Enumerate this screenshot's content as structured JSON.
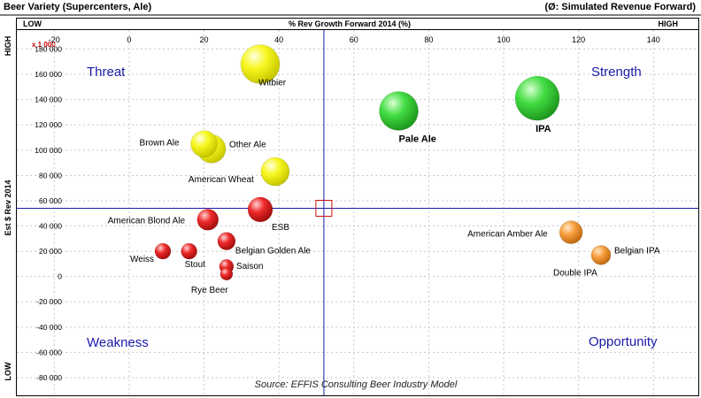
{
  "header": {
    "title": "Beer Variety  (Supercenters, Ale)",
    "subtitle": "(Ø: Simulated Revenue Forward)"
  },
  "top_axis": {
    "low": "LOW",
    "high": "HIGH",
    "label": "% Rev Growth Forward 2014 (%)"
  },
  "side_axis": {
    "high": "HIGH",
    "low": "LOW",
    "label": "Est $ Rev 2014",
    "multiplier": "x 1 000"
  },
  "quadrants": {
    "top_left": "Threat",
    "top_right": "Strength",
    "bottom_left": "Weakness",
    "bottom_right": "Opportunity"
  },
  "source": "Source:  EFFIS  Consulting Beer Industry Model",
  "colors": {
    "yellow": "#f2f200",
    "green": "#3ad33a",
    "red": "#e82020",
    "orange": "#f49a30",
    "crosshair": "#1a1aa8",
    "quadrant_text": "#1a1aa8"
  },
  "chart_data": {
    "type": "scatter",
    "title": "Beer Variety  (Supercenters, Ale)",
    "xlabel": "% Rev Growth Forward 2014 (%)",
    "ylabel": "Est $ Rev 2014",
    "xlim": [
      -30,
      152
    ],
    "ylim": [
      -94000,
      195000
    ],
    "xticks": [
      -20,
      0,
      20,
      40,
      60,
      80,
      100,
      120,
      140
    ],
    "yticks": [
      180000,
      160000,
      140000,
      120000,
      100000,
      80000,
      60000,
      40000,
      20000,
      0,
      -20000,
      -40000,
      -60000,
      -80000
    ],
    "ytick_labels": [
      "180 000",
      "160 000",
      "140 000",
      "120 000",
      "100 000",
      "80 000",
      "60 000",
      "40 000",
      "20 000",
      "0",
      "-20 000",
      "-40 000",
      "-60 000",
      "-80 000"
    ],
    "grid": true,
    "crosshair": {
      "x": 52,
      "y": 54000
    },
    "points": [
      {
        "label": "Witbier",
        "x": 35,
        "y": 168000,
        "size": 11,
        "color": "yellow"
      },
      {
        "label": "Pale Ale",
        "x": 72,
        "y": 131000,
        "size": 11,
        "color": "green"
      },
      {
        "label": "IPA",
        "x": 109,
        "y": 141000,
        "size": 12.5,
        "color": "green"
      },
      {
        "label": "Brown Ale",
        "x": 20,
        "y": 105000,
        "size": 7.5,
        "color": "yellow"
      },
      {
        "label": "Other Ale",
        "x": 22,
        "y": 101000,
        "size": 8,
        "color": "yellow"
      },
      {
        "label": "American Wheat",
        "x": 39,
        "y": 83000,
        "size": 8,
        "color": "yellow"
      },
      {
        "label": "ESB",
        "x": 35,
        "y": 53000,
        "size": 7,
        "color": "red"
      },
      {
        "label": "American Blond Ale",
        "x": 21,
        "y": 45000,
        "size": 6,
        "color": "red"
      },
      {
        "label": "Belgian Golden Ale",
        "x": 26,
        "y": 28000,
        "size": 5,
        "color": "red"
      },
      {
        "label": "Weiss",
        "x": 9,
        "y": 20000,
        "size": 4.5,
        "color": "red"
      },
      {
        "label": "Stout",
        "x": 16,
        "y": 20000,
        "size": 4.5,
        "color": "red"
      },
      {
        "label": "Saison",
        "x": 26,
        "y": 8000,
        "size": 4,
        "color": "red"
      },
      {
        "label": "Rye Beer",
        "x": 26,
        "y": 2000,
        "size": 3.5,
        "color": "red"
      },
      {
        "label": "American Amber Ale",
        "x": 118,
        "y": 35000,
        "size": 6.5,
        "color": "orange"
      },
      {
        "label": "Belgian IPA",
        "x": 126,
        "y": 17000,
        "size": 5.5,
        "color": "orange"
      },
      {
        "label": "Double IPA",
        "x": 126,
        "y": 17000,
        "size": 0,
        "color": "orange"
      }
    ]
  }
}
